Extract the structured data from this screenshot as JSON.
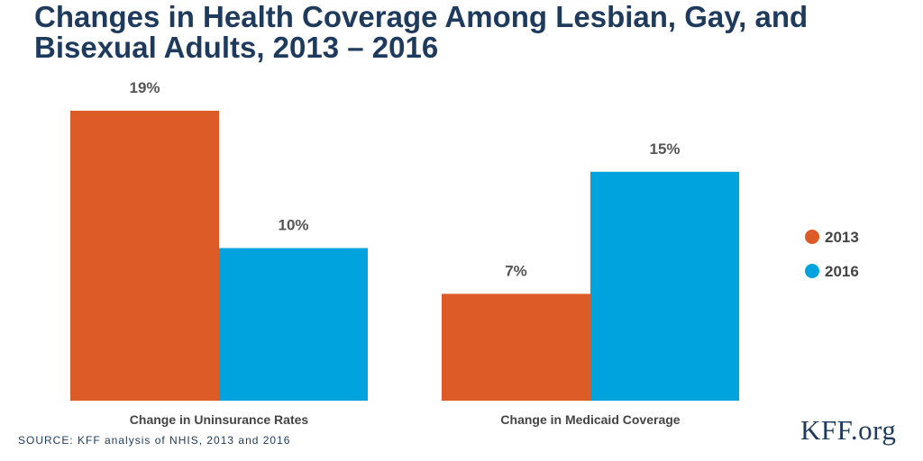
{
  "header": {
    "title": "Changes in Health Coverage Among Lesbian, Gay, and Bisexual Adults, 2013 – 2016"
  },
  "footer": {
    "source": "SOURCE: KFF analysis of NHIS, 2013 and 2016",
    "logo": "KFF.org"
  },
  "colors": {
    "s2013": "#dc5b27",
    "s2016": "#00a3de"
  },
  "chart_data": {
    "type": "bar",
    "title": "Changes in Health Coverage Among Lesbian, Gay, and Bisexual Adults, 2013 – 2016",
    "categories": [
      "Change in Uninsurance Rates",
      "Change in Medicaid Coverage"
    ],
    "series": [
      {
        "name": "2013",
        "values": [
          19,
          7
        ],
        "labels": [
          "19%",
          "7%"
        ]
      },
      {
        "name": "2016",
        "values": [
          10,
          15
        ],
        "labels": [
          "10%",
          "15%"
        ]
      }
    ],
    "ylim": [
      0,
      19
    ],
    "legend": "right",
    "grid": false
  }
}
